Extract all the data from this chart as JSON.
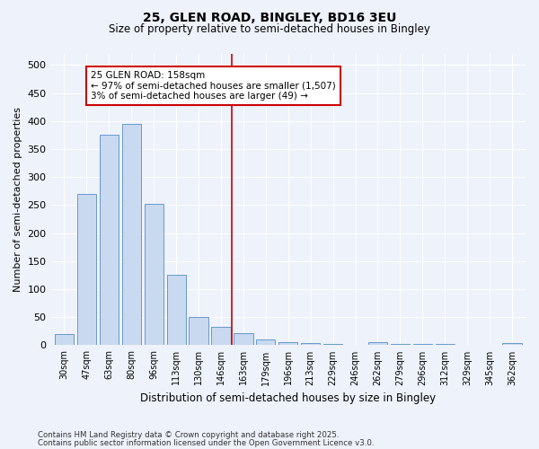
{
  "title": "25, GLEN ROAD, BINGLEY, BD16 3EU",
  "subtitle": "Size of property relative to semi-detached houses in Bingley",
  "xlabel": "Distribution of semi-detached houses by size in Bingley",
  "ylabel": "Number of semi-detached properties",
  "categories": [
    "30sqm",
    "47sqm",
    "63sqm",
    "80sqm",
    "96sqm",
    "113sqm",
    "130sqm",
    "146sqm",
    "163sqm",
    "179sqm",
    "196sqm",
    "213sqm",
    "229sqm",
    "246sqm",
    "262sqm",
    "279sqm",
    "296sqm",
    "312sqm",
    "329sqm",
    "345sqm",
    "362sqm"
  ],
  "values": [
    20,
    270,
    375,
    395,
    253,
    125,
    50,
    33,
    22,
    10,
    6,
    4,
    2,
    0,
    6,
    2,
    2,
    2,
    0,
    0,
    4
  ],
  "bar_color": "#c9d9f0",
  "bar_edge_color": "#6699cc",
  "vline_x_index": 8,
  "vline_color": "#cc0000",
  "annotation_text": "25 GLEN ROAD: 158sqm\n← 97% of semi-detached houses are smaller (1,507)\n3% of semi-detached houses are larger (49) →",
  "annotation_box_color": "#cc0000",
  "ylim": [
    0,
    520
  ],
  "yticks": [
    0,
    50,
    100,
    150,
    200,
    250,
    300,
    350,
    400,
    450,
    500
  ],
  "footer_line1": "Contains HM Land Registry data © Crown copyright and database right 2025.",
  "footer_line2": "Contains public sector information licensed under the Open Government Licence v3.0.",
  "bg_color": "#eef2fa"
}
